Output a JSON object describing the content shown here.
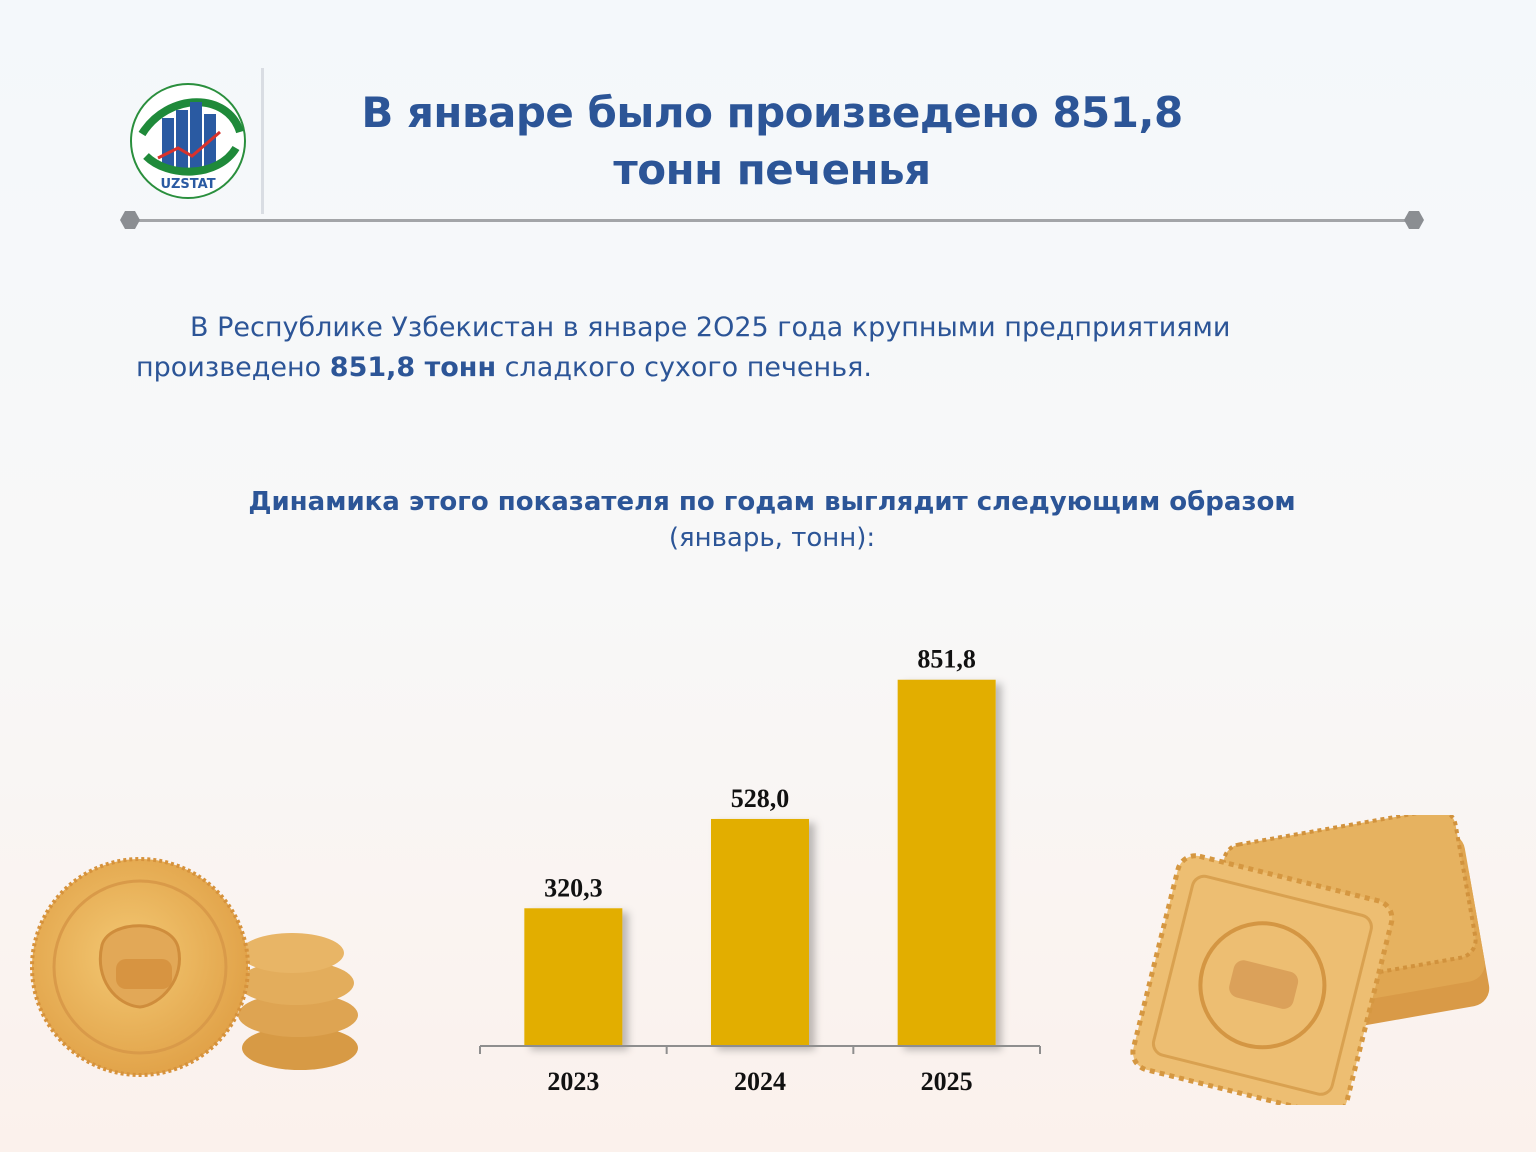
{
  "logo": {
    "text": "UZSTAT"
  },
  "header": {
    "title": "В январе было произведено 851,8\nтонн печенья"
  },
  "intro": {
    "before": "В Республике Узбекистан в январе 2О25 года крупными предприятиями произведено ",
    "highlight": "851,8 тонн",
    "after": " сладкого сухого печенья."
  },
  "chart_heading": {
    "bold": "Динамика этого показателя по годам выглядит следующим образом",
    "light": "(январь, тонн):"
  },
  "colors": {
    "title": "#2c5597",
    "bar": "#e2ae00",
    "divider": "#a3a5a8"
  },
  "chart_data": {
    "type": "bar",
    "categories": [
      "2023",
      "2024",
      "2025"
    ],
    "values": [
      320.3,
      528.0,
      851.8
    ],
    "labels": [
      "320,3",
      "528,0",
      "851,8"
    ],
    "ylim": [
      0,
      1000
    ],
    "grid": false,
    "data_labels": true
  }
}
